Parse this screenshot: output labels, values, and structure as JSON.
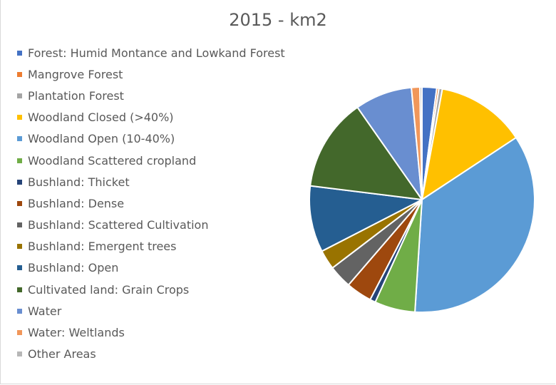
{
  "chart_data": {
    "type": "pie",
    "title": "2015 - km2",
    "legend_position": "left",
    "series": [
      {
        "name": "Forest: Humid Montance and Lowkand Forest",
        "value": 2.1,
        "color": "#4472c4"
      },
      {
        "name": "Mangrove Forest",
        "value": 0.3,
        "color": "#ed7d31"
      },
      {
        "name": "Plantation Forest",
        "value": 0.5,
        "color": "#a5a5a5"
      },
      {
        "name": "Woodland Closed (>40%)",
        "value": 12.8,
        "color": "#ffc000"
      },
      {
        "name": "Woodland Open (10-40%)",
        "value": 35.2,
        "color": "#5b9bd5"
      },
      {
        "name": "Woodland Scattered cropland",
        "value": 5.8,
        "color": "#70ad47"
      },
      {
        "name": "Bushland: Thicket",
        "value": 0.8,
        "color": "#264478"
      },
      {
        "name": "Bushland: Dense",
        "value": 3.7,
        "color": "#9e480e"
      },
      {
        "name": "Bushland: Scattered Cultivation",
        "value": 3.3,
        "color": "#636363"
      },
      {
        "name": "Bushland: Emergent trees",
        "value": 2.8,
        "color": "#997300"
      },
      {
        "name": "Bushland: Open",
        "value": 9.5,
        "color": "#255e91"
      },
      {
        "name": "Cultivated land: Grain Crops",
        "value": 13.3,
        "color": "#43682b"
      },
      {
        "name": "Water",
        "value": 8.2,
        "color": "#698ed0"
      },
      {
        "name": "Water: Weltlands",
        "value": 1.2,
        "color": "#f1975a"
      },
      {
        "name": "Other Areas",
        "value": 0.3,
        "color": "#b7b7b7"
      }
    ]
  }
}
